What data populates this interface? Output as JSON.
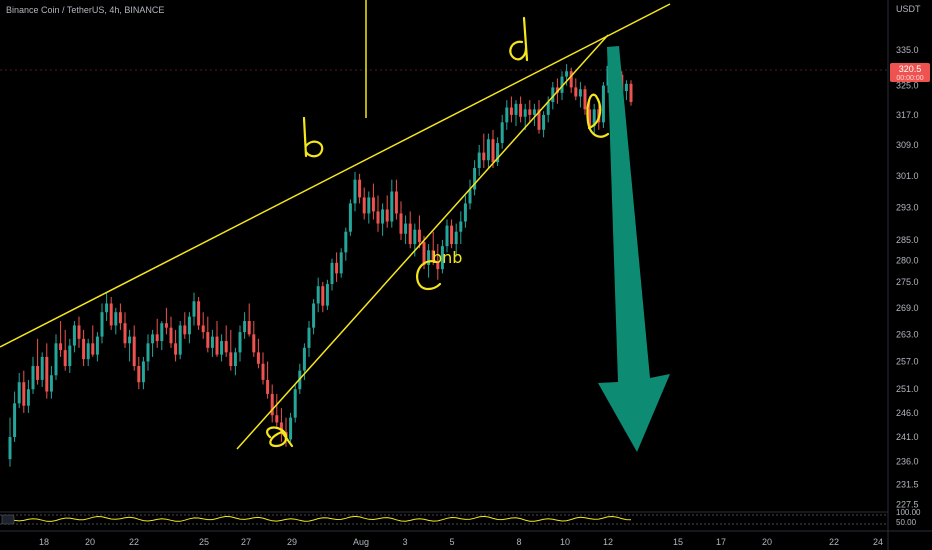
{
  "header": {
    "symbol_title": "Binance Coin / TetherUS, 4h, BINANCE",
    "currency": "USDT"
  },
  "price_badge": {
    "value": "320.5",
    "sub": "00:00:00"
  },
  "annotations": {
    "a": "a",
    "b": "b",
    "c": "C",
    "d": "d",
    "e": "e",
    "symbol": "bnb"
  },
  "colors": {
    "bull": "#26a69a",
    "bear": "#ef5350",
    "trendline": "#f5e61c",
    "arrow": "#0e8c73",
    "badge": "#ef5350",
    "oscillator": "#f5e61c"
  },
  "chart_data": {
    "type": "candlestick",
    "title": "Binance Coin / TetherUS, 4h, BINANCE",
    "ylabel": "USDT",
    "y_scale": "log",
    "ylim": [
      225,
      341
    ],
    "grid": false,
    "price_ticks": [
      335.0,
      325.0,
      317.0,
      309.0,
      301.0,
      293.0,
      285.0,
      280.0,
      275.0,
      269.0,
      263.0,
      257.0,
      251.0,
      246.0,
      241.0,
      236.0,
      231.5,
      227.5
    ],
    "x_ticks": [
      "18",
      "20",
      "22",
      "25",
      "27",
      "29",
      "Aug",
      "3",
      "5",
      "8",
      "10",
      "12",
      "15",
      "17",
      "20",
      "22",
      "24"
    ],
    "last_price": 320.5,
    "candles": [
      [
        236.5,
        245,
        235,
        241
      ],
      [
        241,
        250.5,
        240,
        248
      ],
      [
        248,
        254.5,
        247,
        252.5
      ],
      [
        252.5,
        255,
        246,
        247.5
      ],
      [
        247.5,
        253,
        246,
        251
      ],
      [
        251,
        258,
        250,
        256
      ],
      [
        256,
        262,
        252,
        253
      ],
      [
        253,
        259,
        251.5,
        258
      ],
      [
        258,
        261,
        249,
        250.5
      ],
      [
        250.5,
        256,
        249,
        254
      ],
      [
        254,
        263,
        253,
        261
      ],
      [
        261,
        266,
        258,
        259.5
      ],
      [
        259.5,
        264,
        255,
        256
      ],
      [
        256,
        262,
        254.5,
        260.5
      ],
      [
        260.5,
        266,
        259,
        265
      ],
      [
        265,
        267,
        260,
        262
      ],
      [
        262,
        264,
        256,
        257.5
      ],
      [
        257.5,
        262,
        256,
        261
      ],
      [
        261,
        265,
        258,
        258.5
      ],
      [
        258.5,
        263.5,
        257,
        262.5
      ],
      [
        262.5,
        270,
        261,
        268
      ],
      [
        268,
        272.5,
        266,
        270
      ],
      [
        270,
        271.5,
        264,
        265
      ],
      [
        265,
        269,
        263,
        268
      ],
      [
        268,
        270,
        264,
        265.5
      ],
      [
        265.5,
        268,
        260,
        261
      ],
      [
        261,
        264,
        257,
        262.5
      ],
      [
        262.5,
        265,
        255,
        256
      ],
      [
        256,
        258,
        251,
        252.5
      ],
      [
        252.5,
        258,
        251,
        257
      ],
      [
        257,
        263,
        255,
        261
      ],
      [
        261,
        264,
        258,
        263
      ],
      [
        263,
        266.5,
        260,
        261.5
      ],
      [
        261.5,
        266,
        259.5,
        265.5
      ],
      [
        265.5,
        269,
        263,
        264.5
      ],
      [
        264.5,
        267,
        260,
        261
      ],
      [
        261,
        264,
        257,
        258.5
      ],
      [
        258.5,
        266,
        257.5,
        265
      ],
      [
        265,
        268,
        262,
        263
      ],
      [
        263,
        268,
        261,
        267
      ],
      [
        267,
        272.5,
        265,
        270.5
      ],
      [
        270.5,
        271.5,
        264,
        265
      ],
      [
        265,
        268,
        262,
        263.5
      ],
      [
        263.5,
        267,
        259,
        260
      ],
      [
        260,
        264,
        258,
        262.5
      ],
      [
        262.5,
        266,
        258,
        258.5
      ],
      [
        258.5,
        263,
        257,
        261.5
      ],
      [
        261.5,
        265,
        258,
        259
      ],
      [
        259,
        264,
        255,
        256
      ],
      [
        256,
        260,
        254,
        259
      ],
      [
        259,
        265,
        257,
        263.5
      ],
      [
        263.5,
        268,
        262,
        266
      ],
      [
        266,
        270,
        262.5,
        263
      ],
      [
        263,
        266,
        258,
        259
      ],
      [
        259,
        262,
        255.5,
        256.5
      ],
      [
        256.5,
        259,
        252,
        253
      ],
      [
        253,
        257,
        249,
        250
      ],
      [
        250,
        252,
        244,
        245.5
      ],
      [
        245.5,
        250,
        243,
        244
      ],
      [
        244,
        247,
        240,
        242
      ],
      [
        242,
        245,
        239,
        240.5
      ],
      [
        240.5,
        246,
        240,
        245
      ],
      [
        245,
        252,
        244,
        251
      ],
      [
        251,
        256.5,
        250,
        255
      ],
      [
        255,
        261,
        253,
        260
      ],
      [
        260,
        266,
        258,
        264.5
      ],
      [
        264.5,
        271,
        263,
        270
      ],
      [
        270,
        276,
        268,
        274
      ],
      [
        274,
        275,
        268,
        269.5
      ],
      [
        269.5,
        275.5,
        268.5,
        274.5
      ],
      [
        274.5,
        280.5,
        273,
        279.5
      ],
      [
        279.5,
        282,
        275,
        277
      ],
      [
        277,
        283,
        276,
        282
      ],
      [
        282,
        288,
        280,
        287
      ],
      [
        287,
        295,
        286,
        294
      ],
      [
        294,
        302,
        292,
        300
      ],
      [
        300,
        301.5,
        294,
        295.5
      ],
      [
        295.5,
        298,
        290,
        291.5
      ],
      [
        291.5,
        297,
        289,
        295.5
      ],
      [
        295.5,
        299,
        290,
        292
      ],
      [
        292,
        296,
        287,
        289
      ],
      [
        289,
        294,
        286,
        292.5
      ],
      [
        292.5,
        296,
        288,
        289.5
      ],
      [
        289.5,
        300,
        288,
        297
      ],
      [
        297,
        300,
        290,
        291.5
      ],
      [
        291.5,
        294.5,
        285,
        286.5
      ],
      [
        286.5,
        291,
        284,
        289
      ],
      [
        289,
        292,
        283,
        284
      ],
      [
        284,
        289,
        281,
        287.5
      ],
      [
        287.5,
        291,
        283,
        284.5
      ],
      [
        284.5,
        286,
        278,
        279
      ],
      [
        279,
        284,
        276,
        282.5
      ],
      [
        282.5,
        287,
        279,
        280
      ],
      [
        280,
        284,
        275.5,
        278
      ],
      [
        278,
        285,
        277,
        283.5
      ],
      [
        283.5,
        290,
        282,
        288.5
      ],
      [
        288.5,
        290,
        283,
        284
      ],
      [
        284,
        289,
        281,
        287
      ],
      [
        287,
        292,
        284,
        289.5
      ],
      [
        289.5,
        296,
        288,
        294
      ],
      [
        294,
        300,
        292.5,
        297.5
      ],
      [
        297.5,
        305,
        296,
        303
      ],
      [
        303,
        309,
        301,
        307
      ],
      [
        307,
        312,
        303,
        305
      ],
      [
        305,
        312,
        303,
        310.5
      ],
      [
        310.5,
        313,
        303,
        304.5
      ],
      [
        304.5,
        311,
        303.5,
        309.5
      ],
      [
        309.5,
        317,
        308,
        315
      ],
      [
        315,
        321,
        313,
        319
      ],
      [
        319,
        322,
        315,
        317
      ],
      [
        317,
        321,
        314,
        320
      ],
      [
        320,
        322,
        315,
        316.5
      ],
      [
        316.5,
        320,
        313,
        318.5
      ],
      [
        318.5,
        321,
        315,
        317
      ],
      [
        317,
        320,
        314,
        318.5
      ],
      [
        318.5,
        321,
        312,
        313
      ],
      [
        313,
        318,
        311,
        317
      ],
      [
        317,
        322,
        315,
        320.5
      ],
      [
        320.5,
        326,
        318.5,
        324.5
      ],
      [
        324.5,
        327,
        320,
        323
      ],
      [
        323,
        329,
        321,
        327.5
      ],
      [
        327.5,
        331,
        325,
        329
      ],
      [
        329,
        330,
        323,
        324.5
      ],
      [
        324.5,
        327,
        321,
        322
      ],
      [
        322,
        326,
        319,
        324
      ],
      [
        324,
        325,
        317,
        318.5
      ],
      [
        318.5,
        322,
        313,
        314
      ],
      [
        314,
        320,
        312,
        318.5
      ],
      [
        318.5,
        321,
        313,
        315
      ],
      [
        315,
        326,
        313.5,
        325
      ],
      [
        325,
        333,
        323,
        330.5
      ],
      [
        330.5,
        332,
        324,
        326
      ],
      [
        326,
        330,
        321,
        328
      ],
      [
        328,
        329,
        322,
        323.5
      ],
      [
        323.5,
        326.5,
        321,
        325.5
      ],
      [
        325.5,
        326.5,
        319.5,
        320.5
      ]
    ],
    "oscillator_levels": [
      100.0,
      50.0
    ]
  }
}
